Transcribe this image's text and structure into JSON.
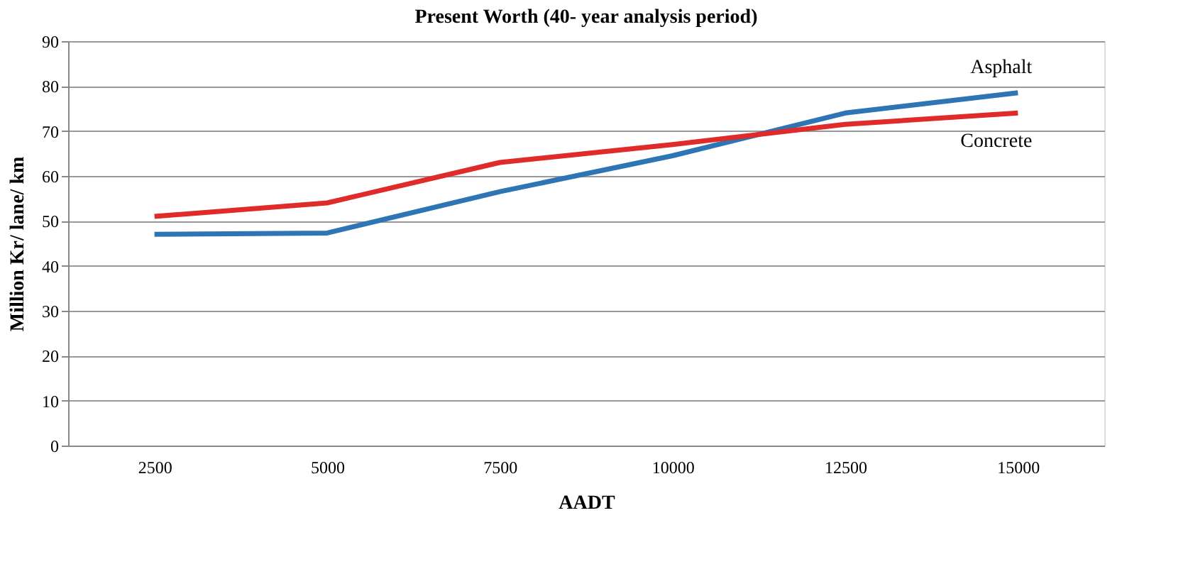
{
  "chart_data": {
    "type": "line",
    "title": "Present Worth (40- year analysis period)",
    "xlabel": "AADT",
    "ylabel": "Million Kr/ lane/ km",
    "categories": [
      "2500",
      "5000",
      "7500",
      "10000",
      "12500",
      "15000"
    ],
    "series": [
      {
        "name": "Asphalt",
        "color": "#2e75b6",
        "values": [
          47,
          47.3,
          56.5,
          64.5,
          74,
          78.5
        ]
      },
      {
        "name": "Concrete",
        "color": "#e02b2b",
        "values": [
          51,
          54,
          63,
          67,
          71.5,
          74
        ]
      }
    ],
    "ylim": [
      0,
      90
    ],
    "yticks": [
      0,
      10,
      20,
      30,
      40,
      50,
      60,
      70,
      80,
      90
    ],
    "grid": "y",
    "legend": false,
    "marker": "none",
    "line_style": "solid"
  }
}
